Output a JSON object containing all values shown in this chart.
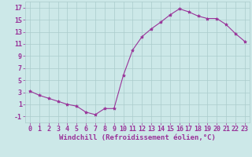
{
  "x": [
    0,
    1,
    2,
    3,
    4,
    5,
    6,
    7,
    8,
    9,
    10,
    11,
    12,
    13,
    14,
    15,
    16,
    17,
    18,
    19,
    20,
    21,
    22,
    23
  ],
  "y": [
    3.2,
    2.5,
    2.0,
    1.5,
    1.0,
    0.7,
    -0.3,
    -0.7,
    0.3,
    0.3,
    5.8,
    10.0,
    12.2,
    13.5,
    14.6,
    15.8,
    16.8,
    16.3,
    15.6,
    15.2,
    15.2,
    14.2,
    12.7,
    11.4
  ],
  "line_color": "#993399",
  "marker": "*",
  "marker_size": 3,
  "bg_color": "#cce8e8",
  "grid_color": "#aacccc",
  "xlabel": "Windchill (Refroidissement éolien,°C)",
  "xlim": [
    -0.5,
    23.5
  ],
  "ylim": [
    -2,
    18
  ],
  "yticks": [
    -1,
    1,
    3,
    5,
    7,
    9,
    11,
    13,
    15,
    17
  ],
  "xticks": [
    0,
    1,
    2,
    3,
    4,
    5,
    6,
    7,
    8,
    9,
    10,
    11,
    12,
    13,
    14,
    15,
    16,
    17,
    18,
    19,
    20,
    21,
    22,
    23
  ],
  "tick_color": "#993399",
  "xlabel_color": "#993399",
  "xlabel_fontsize": 6.5,
  "tick_fontsize": 6.0,
  "ylabel_ticks": [
    "-1",
    "1",
    "3",
    "5",
    "7",
    "9",
    "11",
    "13",
    "15",
    "17"
  ]
}
